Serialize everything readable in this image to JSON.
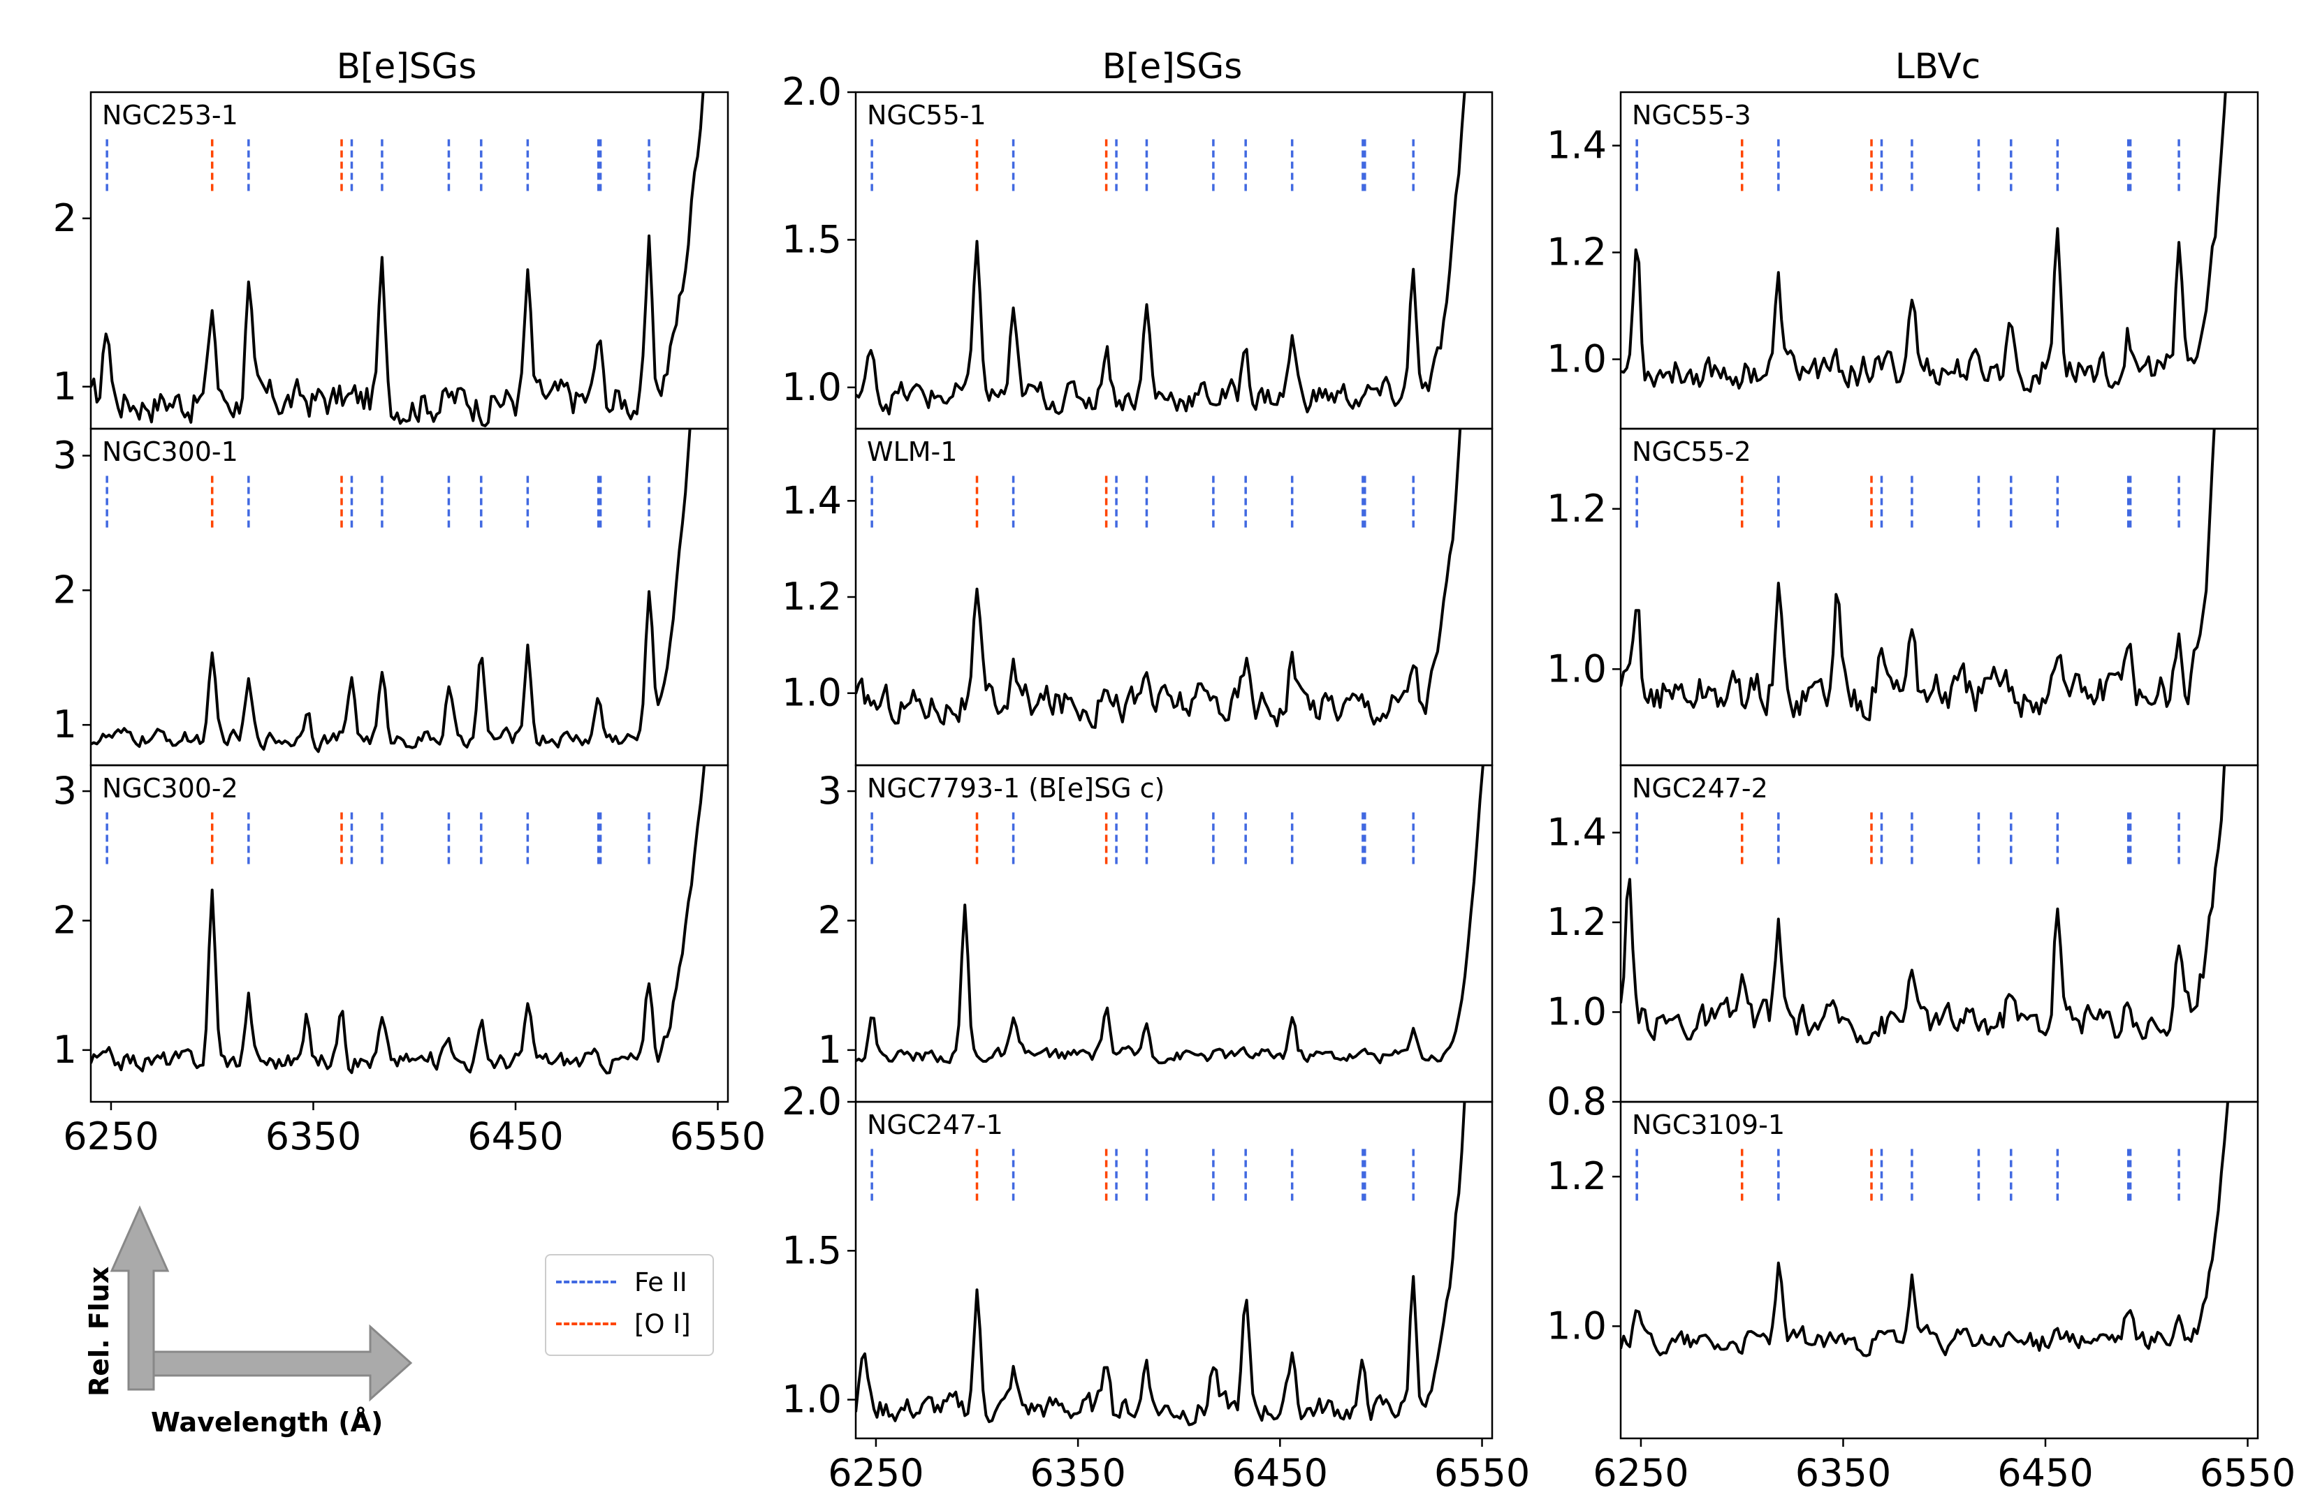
{
  "figure": {
    "column_titles": [
      "B[e]SGs",
      "B[e]SGs",
      "LBVc"
    ],
    "legend": [
      {
        "label": "Fe II",
        "color": "#4169e1"
      },
      {
        "label": "[O I]",
        "color": "#ff4500"
      }
    ],
    "key": {
      "y_label": "Rel. Flux",
      "x_label": "Wavelength (Å)"
    }
  },
  "chart_data": {
    "type": "line",
    "xlim": [
      6240,
      6555
    ],
    "x_ticks": [
      6250,
      6350,
      6450,
      6550
    ],
    "x_tick_labels": [
      "6250",
      "6350",
      "6450",
      "6550"
    ],
    "line_marks": {
      "Fe II": [
        6248,
        6318,
        6369,
        6384,
        6417,
        6433,
        6456,
        6491,
        6492,
        6516
      ],
      "[O I]": [
        6300,
        6364
      ]
    },
    "panels": [
      {
        "column": 0,
        "row": 0,
        "label": "NGC253-1",
        "ylim": [
          0.75,
          2.75
        ],
        "y_ticks": [
          1,
          2
        ],
        "y_tick_labels": [
          "1",
          "2"
        ],
        "continuum": 0.92,
        "noise": 0.09,
        "rise_start": 6515,
        "rise_end": 6545,
        "rise_top": 3.2,
        "peaks": [
          [
            6248,
            0.45
          ],
          [
            6300,
            0.55
          ],
          [
            6318,
            0.65
          ],
          [
            6384,
            0.75
          ],
          [
            6456,
            0.7
          ],
          [
            6491,
            0.35
          ],
          [
            6516,
            0.85
          ]
        ]
      },
      {
        "column": 0,
        "row": 1,
        "label": "NGC300-1",
        "ylim": [
          0.7,
          3.2
        ],
        "y_ticks": [
          1,
          2,
          3
        ],
        "y_tick_labels": [
          "1",
          "2",
          "3"
        ],
        "continuum": 0.9,
        "noise": 0.05,
        "rise_start": 6512,
        "rise_end": 6538,
        "rise_top": 3.6,
        "peaks": [
          [
            6300,
            0.55
          ],
          [
            6318,
            0.4
          ],
          [
            6347,
            0.25
          ],
          [
            6369,
            0.45
          ],
          [
            6384,
            0.45
          ],
          [
            6417,
            0.35
          ],
          [
            6433,
            0.6
          ],
          [
            6456,
            0.7
          ],
          [
            6491,
            0.3
          ],
          [
            6516,
            1.1
          ]
        ]
      },
      {
        "column": 0,
        "row": 2,
        "label": "NGC300-2",
        "ylim": [
          0.6,
          3.2
        ],
        "y_ticks": [
          1,
          2,
          3
        ],
        "y_tick_labels": [
          "1",
          "2",
          "3"
        ],
        "continuum": 0.92,
        "noise": 0.06,
        "rise_start": 6515,
        "rise_end": 6545,
        "rise_top": 3.6,
        "peaks": [
          [
            6300,
            1.3
          ],
          [
            6318,
            0.5
          ],
          [
            6347,
            0.3
          ],
          [
            6364,
            0.5
          ],
          [
            6384,
            0.3
          ],
          [
            6417,
            0.25
          ],
          [
            6433,
            0.25
          ],
          [
            6456,
            0.4
          ],
          [
            6516,
            0.6
          ]
        ]
      },
      {
        "column": 1,
        "row": 0,
        "label": "NGC55-1",
        "ylim": [
          0.86,
          2.0
        ],
        "y_ticks": [
          1.0,
          1.5,
          2.0
        ],
        "y_tick_labels": [
          "1.0",
          "1.5",
          "2.0"
        ],
        "continuum": 0.97,
        "noise": 0.04,
        "rise_start": 6520,
        "rise_end": 6545,
        "rise_top": 2.4,
        "peaks": [
          [
            6248,
            0.18
          ],
          [
            6300,
            0.55
          ],
          [
            6318,
            0.25
          ],
          [
            6364,
            0.2
          ],
          [
            6384,
            0.3
          ],
          [
            6433,
            0.18
          ],
          [
            6456,
            0.2
          ],
          [
            6516,
            0.45
          ]
        ]
      },
      {
        "column": 1,
        "row": 1,
        "label": "WLM-1",
        "ylim": [
          0.85,
          1.55
        ],
        "y_ticks": [
          1.0,
          1.2,
          1.4
        ],
        "y_tick_labels": [
          "1.0",
          "1.2",
          "1.4"
        ],
        "continuum": 0.98,
        "noise": 0.03,
        "rise_start": 6518,
        "rise_end": 6545,
        "rise_top": 1.9,
        "peaks": [
          [
            6300,
            0.2
          ],
          [
            6318,
            0.07
          ],
          [
            6364,
            0.08
          ],
          [
            6384,
            0.06
          ],
          [
            6433,
            0.08
          ],
          [
            6456,
            0.1
          ],
          [
            6516,
            0.1
          ]
        ]
      },
      {
        "column": 1,
        "row": 2,
        "label": "NGC7793-1 (B[e]SG c)",
        "ylim": [
          0.6,
          3.2
        ],
        "y_ticks": [
          1,
          2,
          3
        ],
        "y_tick_labels": [
          "1",
          "2",
          "3"
        ],
        "continuum": 0.96,
        "noise": 0.04,
        "rise_start": 6530,
        "rise_end": 6552,
        "rise_top": 3.6,
        "peaks": [
          [
            6248,
            0.3
          ],
          [
            6294,
            1.15
          ],
          [
            6318,
            0.25
          ],
          [
            6364,
            0.4
          ],
          [
            6384,
            0.25
          ],
          [
            6456,
            0.3
          ],
          [
            6516,
            0.25
          ]
        ]
      },
      {
        "column": 1,
        "row": 3,
        "label": "NGC247-1",
        "ylim": [
          0.87,
          2.0
        ],
        "y_ticks": [
          1.0,
          1.5,
          2.0
        ],
        "y_tick_labels": [
          "1.0",
          "1.5",
          "2.0"
        ],
        "continuum": 0.97,
        "noise": 0.035,
        "rise_start": 6520,
        "rise_end": 6545,
        "rise_top": 2.4,
        "peaks": [
          [
            6244,
            0.2
          ],
          [
            6300,
            0.38
          ],
          [
            6318,
            0.12
          ],
          [
            6364,
            0.2
          ],
          [
            6384,
            0.18
          ],
          [
            6417,
            0.15
          ],
          [
            6433,
            0.35
          ],
          [
            6456,
            0.2
          ],
          [
            6491,
            0.12
          ],
          [
            6516,
            0.45
          ]
        ]
      },
      {
        "column": 2,
        "row": 0,
        "label": "NGC55-3",
        "ylim": [
          0.87,
          1.5
        ],
        "y_ticks": [
          1.0,
          1.2,
          1.4
        ],
        "y_tick_labels": [
          "1.0",
          "1.2",
          "1.4"
        ],
        "continuum": 0.98,
        "noise": 0.025,
        "rise_start": 6520,
        "rise_end": 6545,
        "rise_top": 1.9,
        "peaks": [
          [
            6248,
            0.25
          ],
          [
            6318,
            0.15
          ],
          [
            6384,
            0.15
          ],
          [
            6433,
            0.1
          ],
          [
            6456,
            0.27
          ],
          [
            6491,
            0.07
          ],
          [
            6516,
            0.25
          ]
        ]
      },
      {
        "column": 2,
        "row": 1,
        "label": "NGC55-2",
        "ylim": [
          0.88,
          1.3
        ],
        "y_ticks": [
          1.0,
          1.2
        ],
        "y_tick_labels": [
          "1.0",
          "1.2"
        ],
        "continuum": 0.97,
        "noise": 0.022,
        "rise_start": 6518,
        "rise_end": 6538,
        "rise_top": 1.5,
        "peaks": [
          [
            6248,
            0.1
          ],
          [
            6318,
            0.12
          ],
          [
            6347,
            0.12
          ],
          [
            6369,
            0.08
          ],
          [
            6384,
            0.1
          ],
          [
            6456,
            0.06
          ],
          [
            6491,
            0.08
          ],
          [
            6516,
            0.08
          ]
        ]
      },
      {
        "column": 2,
        "row": 2,
        "label": "NGC247-2",
        "ylim": [
          0.8,
          1.55
        ],
        "y_ticks": [
          0.8,
          1.0,
          1.2,
          1.4
        ],
        "y_tick_labels": [
          "0.8",
          "1.0",
          "1.2",
          "1.4"
        ],
        "continuum": 0.98,
        "noise": 0.03,
        "rise_start": 6518,
        "rise_end": 6542,
        "rise_top": 1.8,
        "peaks": [
          [
            6244,
            0.28
          ],
          [
            6300,
            0.1
          ],
          [
            6318,
            0.2
          ],
          [
            6384,
            0.15
          ],
          [
            6433,
            0.1
          ],
          [
            6456,
            0.27
          ],
          [
            6491,
            0.07
          ],
          [
            6516,
            0.15
          ]
        ]
      },
      {
        "column": 2,
        "row": 3,
        "label": "NGC3109-1",
        "ylim": [
          0.85,
          1.3
        ],
        "y_ticks": [
          1.0,
          1.2
        ],
        "y_tick_labels": [
          "1.0",
          "1.2"
        ],
        "continuum": 0.98,
        "noise": 0.012,
        "rise_start": 6520,
        "rise_end": 6545,
        "rise_top": 1.5,
        "peaks": [
          [
            6248,
            0.06
          ],
          [
            6318,
            0.1
          ],
          [
            6384,
            0.08
          ],
          [
            6456,
            0.03
          ],
          [
            6491,
            0.04
          ],
          [
            6516,
            0.03
          ]
        ]
      }
    ]
  }
}
